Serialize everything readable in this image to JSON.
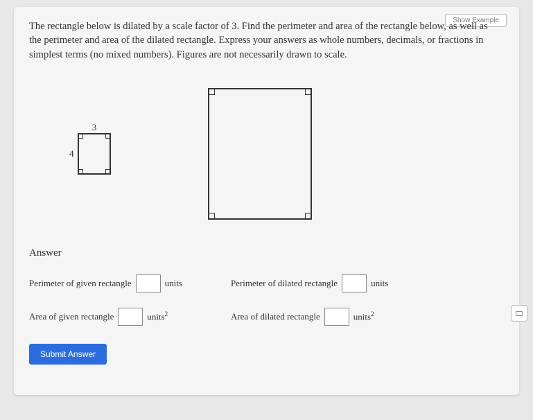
{
  "topButton": {
    "label": "Show Example"
  },
  "prompt": "The rectangle below is dilated by a scale factor of 3. Find the perimeter and area of the rectangle below, as well as the perimeter and area of the dilated rectangle. Express your answers as whole numbers, decimals, or fractions in simplest terms (no mixed numbers). Figures are not necessarily drawn to scale.",
  "figures": {
    "small": {
      "topLabel": "3",
      "leftLabel": "4"
    }
  },
  "answer": {
    "heading": "Answer",
    "perimGivenLabel": "Perimeter of given rectangle",
    "perimGivenUnit": "units",
    "areaGivenLabel": "Area of given rectangle",
    "areaGivenUnit": "units",
    "perimDilatedLabel": "Perimeter of dilated rectangle",
    "perimDilatedUnit": "units",
    "areaDilatedLabel": "Area of dilated rectangle",
    "areaDilatedUnit": "units"
  },
  "submitLabel": "Submit Answer"
}
